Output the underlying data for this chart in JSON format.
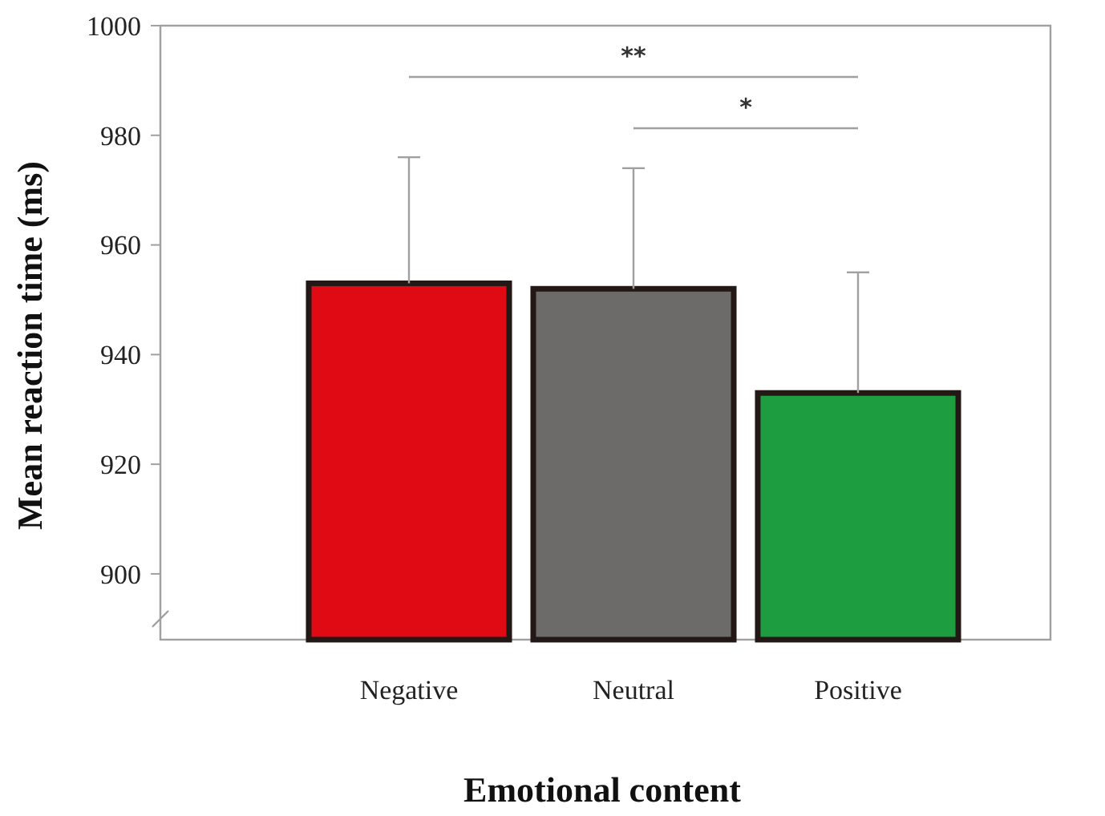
{
  "chart_data": {
    "type": "bar",
    "xlabel": "Emotional content",
    "ylabel": "Mean reaction time (ms)",
    "categories": [
      "Negative",
      "Neutral",
      "Positive"
    ],
    "values": [
      953,
      952,
      933
    ],
    "colors": [
      "#e00a14",
      "#6d6b6a",
      "#1e9c40"
    ],
    "errors": [
      [
        953,
        976
      ],
      [
        952,
        974
      ],
      [
        933,
        955
      ]
    ],
    "ylim": [
      888,
      1000
    ],
    "yticks": [
      900,
      920,
      940,
      960,
      980,
      1000
    ],
    "annotations": [
      "**",
      "*"
    ]
  }
}
